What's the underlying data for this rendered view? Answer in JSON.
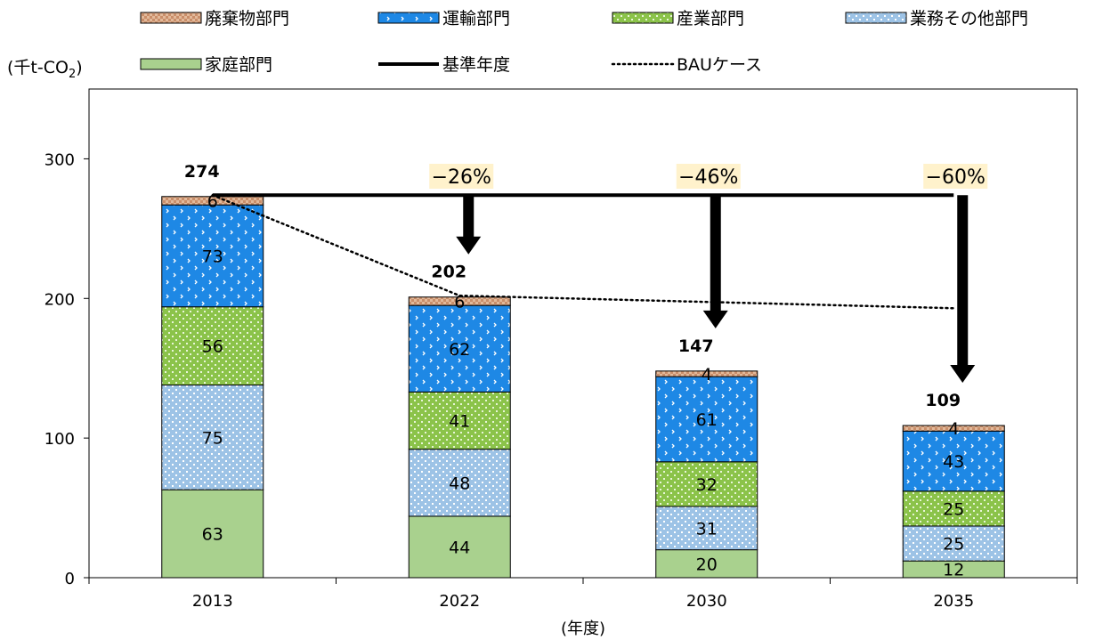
{
  "chart_data": {
    "type": "bar",
    "stacked": true,
    "unit_label": "(千t-CO",
    "unit_sub": "2",
    "unit_close": ")",
    "xlabel": "(年度)",
    "categories": [
      "2013",
      "2022",
      "2030",
      "2035"
    ],
    "ylim": [
      0,
      350
    ],
    "yticks": [
      0,
      100,
      200,
      300
    ],
    "series": [
      {
        "name": "家庭部門",
        "values": [
          63,
          44,
          20,
          12
        ],
        "color": "#a9d18e",
        "pattern": "solid"
      },
      {
        "name": "業務その他部門",
        "values": [
          75,
          48,
          31,
          25
        ],
        "color": "#9dc3e6",
        "pattern": "dots"
      },
      {
        "name": "産業部門",
        "values": [
          56,
          41,
          32,
          25
        ],
        "color": "#8bc34a",
        "pattern": "dots-green"
      },
      {
        "name": "運輸部門",
        "values": [
          73,
          62,
          61,
          43
        ],
        "color": "#1e88e5",
        "pattern": "chevrons"
      },
      {
        "name": "廃棄物部門",
        "values": [
          6,
          6,
          4,
          4
        ],
        "color": "#e2b99a",
        "pattern": "checker"
      }
    ],
    "totals": [
      "274",
      "202",
      "147",
      "109"
    ],
    "reductions": [
      "",
      "−26%",
      "−46%",
      "−60%"
    ],
    "reduction_highlight": "#fff2cc",
    "baseline": {
      "name": "基準年度",
      "value": 274
    },
    "bau": {
      "name": "BAUケース",
      "points": [
        [
          0,
          274
        ],
        [
          1,
          202
        ],
        [
          3,
          193
        ]
      ]
    },
    "legend": {
      "row1": [
        "廃棄物部門",
        "運輸部門",
        "産業部門",
        "業務その他部門"
      ],
      "row2": [
        "家庭部門",
        "基準年度",
        "BAUケース"
      ]
    },
    "grid": false
  }
}
